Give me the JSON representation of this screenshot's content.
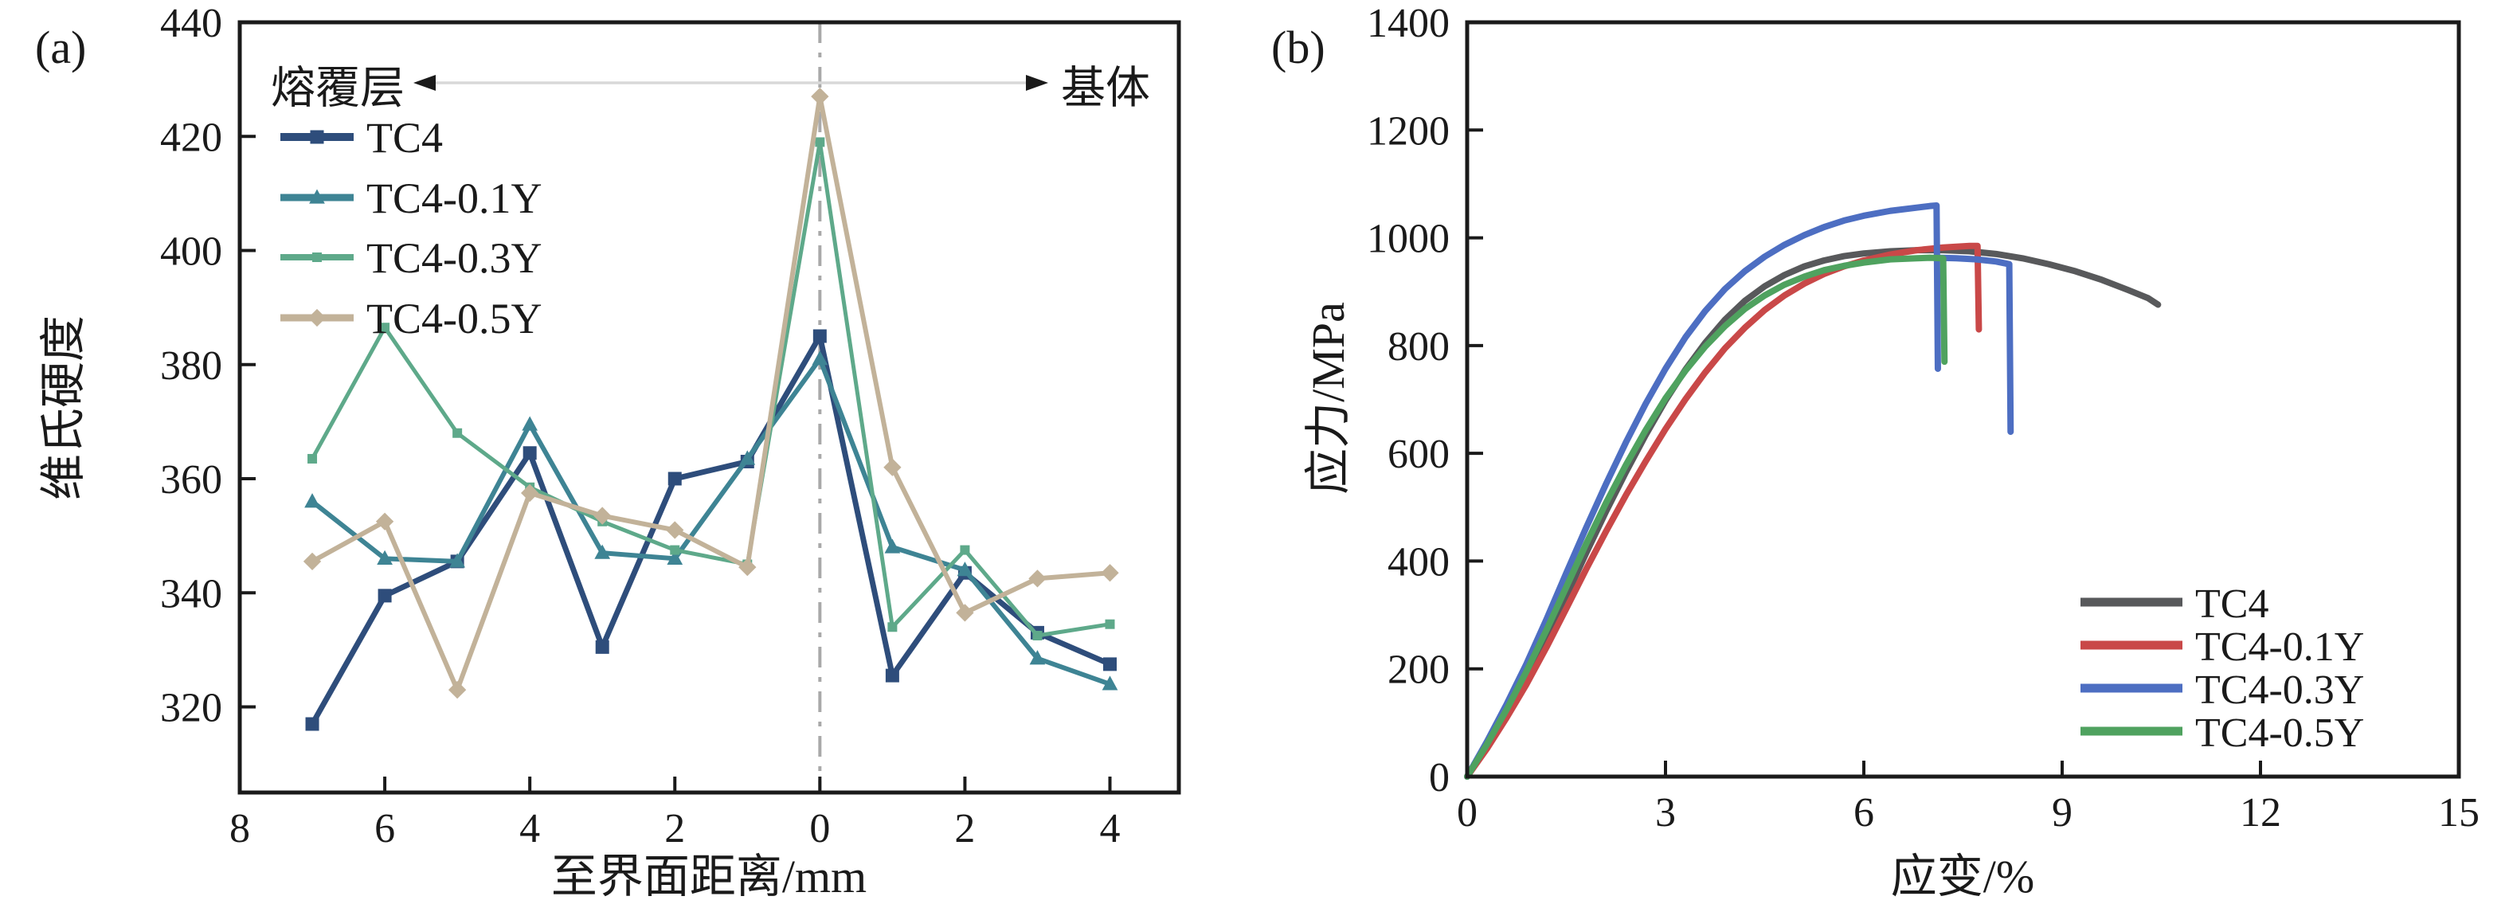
{
  "chart_data": [
    {
      "id": "a",
      "type": "line",
      "panel_label": "(a)",
      "xlabel": "至界面距离/mm",
      "ylabel": "维氏硬度",
      "xlim": [
        -8,
        4.95
      ],
      "ylim": [
        305,
        440
      ],
      "grid": false,
      "legend_position": "upper-left",
      "interface_line_x": 0,
      "region_annotation": {
        "left_label": "熔覆层",
        "right_label": "基体"
      },
      "x_ticks": [
        {
          "value": -8,
          "label": "8"
        },
        {
          "value": -6,
          "label": "6"
        },
        {
          "value": -4,
          "label": "4"
        },
        {
          "value": -2,
          "label": "2"
        },
        {
          "value": 0,
          "label": "0"
        },
        {
          "value": 2,
          "label": "2"
        },
        {
          "value": 4,
          "label": "4"
        }
      ],
      "y_ticks": [
        {
          "value": 320,
          "label": "320"
        },
        {
          "value": 340,
          "label": "340"
        },
        {
          "value": 360,
          "label": "360"
        },
        {
          "value": 380,
          "label": "380"
        },
        {
          "value": 400,
          "label": "400"
        },
        {
          "value": 420,
          "label": "420"
        },
        {
          "value": 440,
          "label": "440"
        }
      ],
      "x": [
        -7,
        -6,
        -5,
        -4,
        -3,
        -2,
        -1,
        0,
        1,
        2,
        3,
        4
      ],
      "series": [
        {
          "name": "TC4",
          "color": "#2e4d7b",
          "marker": "square",
          "marker_size": 17,
          "line_width": 7,
          "values": [
            317,
            339.5,
            345.5,
            364.5,
            330.5,
            360,
            363,
            385,
            325.5,
            343.5,
            333,
            327.5
          ]
        },
        {
          "name": "TC4-0.1Y",
          "color": "#3e8494",
          "marker": "triangle",
          "marker_size": 17,
          "line_width": 6,
          "values": [
            356,
            346,
            345.5,
            369.5,
            347,
            346,
            363.5,
            381,
            348,
            344,
            328.5,
            324
          ]
        },
        {
          "name": "TC4-0.3Y",
          "color": "#5ea98a",
          "marker": "square",
          "marker_size": 12,
          "line_width": 5,
          "values": [
            363.5,
            386.5,
            368,
            358.5,
            352.5,
            347.5,
            345,
            419,
            334,
            347.5,
            332.5,
            334.5
          ]
        },
        {
          "name": "TC4-0.5Y",
          "color": "#c2b299",
          "marker": "diamond",
          "marker_size": 18,
          "line_width": 6,
          "values": [
            345.5,
            352.5,
            323,
            357.5,
            353.5,
            351,
            344.5,
            427,
            362,
            336.5,
            342.5,
            343.5
          ]
        }
      ]
    },
    {
      "id": "b",
      "type": "line",
      "panel_label": "(b)",
      "xlabel": "应变/%",
      "ylabel": "应力/MPa",
      "xlim": [
        0,
        15
      ],
      "ylim": [
        0,
        1400
      ],
      "grid": false,
      "legend_position": "lower-right",
      "x_ticks": [
        {
          "value": 0,
          "label": "0"
        },
        {
          "value": 3,
          "label": "3"
        },
        {
          "value": 6,
          "label": "6"
        },
        {
          "value": 9,
          "label": "9"
        },
        {
          "value": 12,
          "label": "12"
        },
        {
          "value": 15,
          "label": "15"
        }
      ],
      "y_ticks": [
        {
          "value": 0,
          "label": "0"
        },
        {
          "value": 200,
          "label": "200"
        },
        {
          "value": 400,
          "label": "400"
        },
        {
          "value": 600,
          "label": "600"
        },
        {
          "value": 800,
          "label": "800"
        },
        {
          "value": 1000,
          "label": "1000"
        },
        {
          "value": 1200,
          "label": "1200"
        },
        {
          "value": 1400,
          "label": "1400"
        }
      ],
      "series": [
        {
          "name": "TC4",
          "color": "#58595b",
          "line_width": 8,
          "segments": [
            [
              [
                0,
                0
              ],
              [
                0.3,
                55
              ],
              [
                0.6,
                115
              ],
              [
                0.9,
                182
              ],
              [
                1.2,
                255
              ],
              [
                1.5,
                335
              ],
              [
                1.8,
                415
              ],
              [
                2.1,
                492
              ],
              [
                2.4,
                565
              ],
              [
                2.7,
                634
              ],
              [
                3.0,
                698
              ],
              [
                3.3,
                755
              ],
              [
                3.6,
                805
              ],
              [
                3.9,
                848
              ],
              [
                4.2,
                883
              ],
              [
                4.5,
                910
              ],
              [
                4.8,
                931
              ],
              [
                5.1,
                947
              ],
              [
                5.4,
                958
              ],
              [
                5.7,
                966
              ],
              [
                6.0,
                971
              ],
              [
                6.4,
                975
              ],
              [
                6.8,
                977
              ],
              [
                7.2,
                977
              ],
              [
                7.6,
                975
              ],
              [
                8.0,
                970
              ],
              [
                8.4,
                962
              ],
              [
                8.8,
                951
              ],
              [
                9.2,
                938
              ],
              [
                9.6,
                922
              ],
              [
                10.0,
                903
              ],
              [
                10.3,
                888
              ],
              [
                10.45,
                876
              ]
            ]
          ]
        },
        {
          "name": "TC4-0.1Y",
          "color": "#c94848",
          "line_width": 8,
          "segments": [
            [
              [
                0,
                0
              ],
              [
                0.3,
                52
              ],
              [
                0.6,
                110
              ],
              [
                0.9,
                172
              ],
              [
                1.2,
                240
              ],
              [
                1.5,
                312
              ],
              [
                1.8,
                385
              ],
              [
                2.1,
                455
              ],
              [
                2.4,
                522
              ],
              [
                2.7,
                585
              ],
              [
                3.0,
                645
              ],
              [
                3.3,
                700
              ],
              [
                3.6,
                750
              ],
              [
                3.9,
                795
              ],
              [
                4.2,
                833
              ],
              [
                4.5,
                866
              ],
              [
                4.8,
                893
              ],
              [
                5.1,
                915
              ],
              [
                5.4,
                933
              ],
              [
                5.7,
                947
              ],
              [
                6.0,
                958
              ],
              [
                6.4,
                969
              ],
              [
                6.8,
                977
              ],
              [
                7.2,
                982
              ],
              [
                7.6,
                985
              ],
              [
                7.72,
                985
              ],
              [
                7.74,
                830
              ]
            ]
          ]
        },
        {
          "name": "TC4-0.3Y",
          "color": "#4d6ec2",
          "line_width": 8,
          "segments": [
            [
              [
                0,
                0
              ],
              [
                0.3,
                65
              ],
              [
                0.6,
                135
              ],
              [
                0.9,
                210
              ],
              [
                1.2,
                292
              ],
              [
                1.5,
                378
              ],
              [
                1.8,
                462
              ],
              [
                2.1,
                543
              ],
              [
                2.4,
                620
              ],
              [
                2.7,
                692
              ],
              [
                3.0,
                757
              ],
              [
                3.3,
                815
              ],
              [
                3.6,
                864
              ],
              [
                3.9,
                905
              ],
              [
                4.2,
                938
              ],
              [
                4.5,
                965
              ],
              [
                4.8,
                987
              ],
              [
                5.1,
                1005
              ],
              [
                5.4,
                1020
              ],
              [
                5.7,
                1032
              ],
              [
                6.0,
                1041
              ],
              [
                6.4,
                1050
              ],
              [
                6.8,
                1056
              ],
              [
                7.0,
                1059
              ],
              [
                7.1,
                1060
              ],
              [
                7.12,
                757
              ]
            ],
            [
              [
                7.12,
                963
              ],
              [
                7.4,
                962
              ],
              [
                7.7,
                960
              ],
              [
                8.0,
                956
              ],
              [
                8.2,
                951
              ],
              [
                8.22,
                640
              ]
            ]
          ]
        },
        {
          "name": "TC4-0.5Y",
          "color": "#4fa25f",
          "line_width": 8,
          "segments": [
            [
              [
                0,
                0
              ],
              [
                0.3,
                60
              ],
              [
                0.6,
                125
              ],
              [
                0.9,
                196
              ],
              [
                1.2,
                272
              ],
              [
                1.5,
                352
              ],
              [
                1.8,
                432
              ],
              [
                2.1,
                508
              ],
              [
                2.4,
                578
              ],
              [
                2.7,
                643
              ],
              [
                3.0,
                702
              ],
              [
                3.3,
                753
              ],
              [
                3.6,
                798
              ],
              [
                3.9,
                836
              ],
              [
                4.2,
                868
              ],
              [
                4.5,
                893
              ],
              [
                4.8,
                913
              ],
              [
                5.1,
                928
              ],
              [
                5.4,
                940
              ],
              [
                5.7,
                948
              ],
              [
                6.0,
                954
              ],
              [
                6.4,
                960
              ],
              [
                6.8,
                962
              ],
              [
                7.0,
                963
              ],
              [
                7.2,
                962
              ],
              [
                7.22,
                770
              ]
            ]
          ]
        }
      ]
    }
  ]
}
